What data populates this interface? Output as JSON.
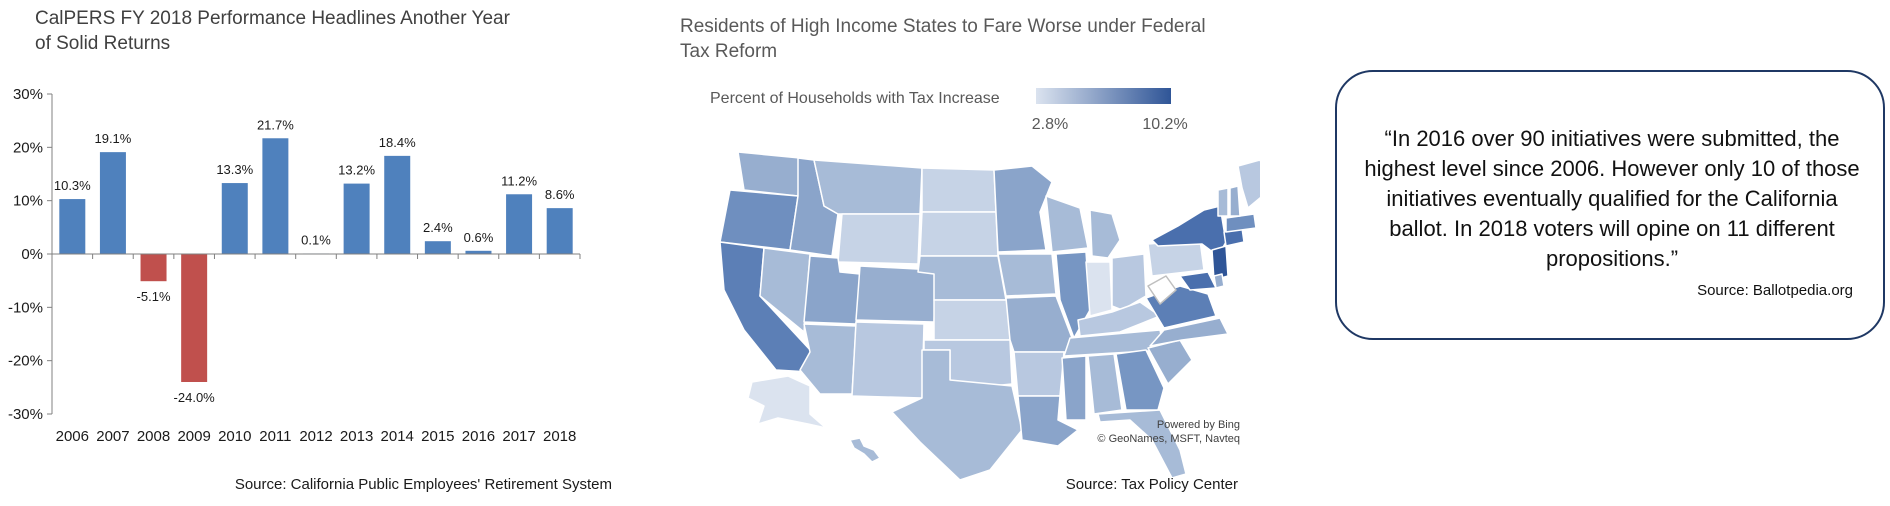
{
  "bar_panel": {
    "title": "CalPERS FY 2018 Performance Headlines Another Year of Solid Returns",
    "source": "Source: California Public Employees' Retirement System"
  },
  "map_panel": {
    "title": "Residents of High Income States to Fare Worse under Federal Tax Reform",
    "legend_title": "Percent of Households with Tax Increase",
    "legend_min": "2.8%",
    "legend_max": "10.2%",
    "legend_colors": [
      "#dbe3ef",
      "#2f5597"
    ],
    "attribution_line1": "Powered by Bing",
    "attribution_line2": "© GeoNames, MSFT, Navteq",
    "source": "Source: Tax Policy Center"
  },
  "quote_panel": {
    "quote": "“In 2016 over 90 initiatives were submitted, the highest level since 2006.  However only 10 of those initiatives eventually qualified for the California ballot.  In 2018 voters will opine on 11 different propositions.”",
    "source": "Source: Ballotpedia.org",
    "border_color": "#1f3864"
  },
  "chart_data": [
    {
      "type": "bar",
      "title": "CalPERS FY 2018 Performance Headlines Another Year of Solid Returns",
      "xlabel": "",
      "ylabel": "",
      "categories": [
        "2006",
        "2007",
        "2008",
        "2009",
        "2010",
        "2011",
        "2012",
        "2013",
        "2014",
        "2015",
        "2016",
        "2017",
        "2018"
      ],
      "values": [
        10.3,
        19.1,
        -5.1,
        -24.0,
        13.3,
        21.7,
        0.1,
        13.2,
        18.4,
        2.4,
        0.6,
        11.2,
        8.6
      ],
      "data_labels": [
        "10.3%",
        "19.1%",
        "-5.1%",
        "-24.0%",
        "13.3%",
        "21.7%",
        "0.1%",
        "13.2%",
        "18.4%",
        "2.4%",
        "0.6%",
        "11.2%",
        "8.6%"
      ],
      "yticks": [
        30,
        20,
        10,
        0,
        -10,
        -20,
        -30
      ],
      "ytick_labels": [
        "30%",
        "20%",
        "10%",
        "0%",
        "-10%",
        "-20%",
        "-30%"
      ],
      "ylim": [
        -30,
        30
      ],
      "positive_color": "#4f81bd",
      "negative_color": "#c0504d",
      "grid": false
    },
    {
      "type": "heatmap",
      "title": "Residents of High Income States to Fare Worse under Federal Tax Reform",
      "legend_title": "Percent of Households with Tax Increase",
      "range": [
        2.8,
        10.2
      ],
      "range_labels": [
        "2.8%",
        "10.2%"
      ],
      "color_scale": [
        "#dbe3ef",
        "#2f5597"
      ]
    }
  ]
}
